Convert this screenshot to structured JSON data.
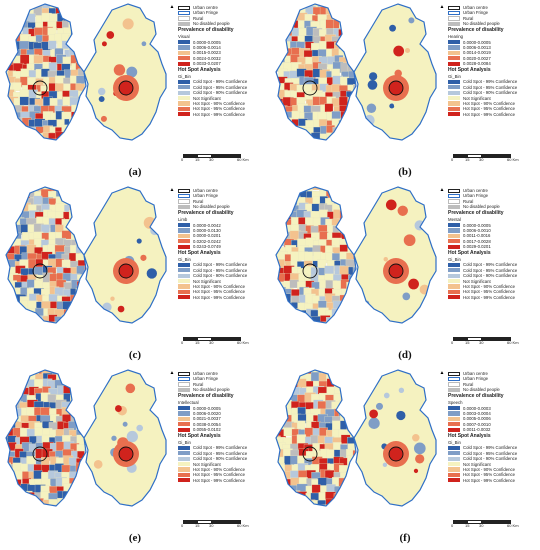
{
  "legend_common": {
    "urban_centre": "Urban centre",
    "urban_fringe": "Urban Fringe",
    "rural": "Rural",
    "no_disabled": "No disabled people",
    "prevalence_title": "Prevalence of disability",
    "hotspot_title": "Hot Spot Analysis",
    "gi_bin": "Gi_Bin",
    "gi_classes": [
      "Cold Spot - 99% Confidence",
      "Cold Spot - 95% Confidence",
      "Cold Spot - 90% Confidence",
      "Not Significant",
      "Hot Spot - 90% Confidence",
      "Hot Spot - 95% Confidence",
      "Hot Spot - 99% Confidence"
    ],
    "scale_labels": [
      "0",
      "15",
      "30",
      "60 Km"
    ]
  },
  "colors": {
    "cold99": "#2f5fa8",
    "cold95": "#7f9dc6",
    "cold90": "#b6c8dc",
    "ns": "#f5f2c0",
    "hot90": "#f3c28e",
    "hot95": "#e86f4f",
    "hot99": "#d0231d",
    "fringe": "#2f6fc6",
    "nodis": "#bdbdbd"
  },
  "panels": [
    {
      "caption": "(a)",
      "type": "Visual",
      "classes": [
        "0.0000-0.0005",
        "0.0006-0.0014",
        "0.0015-0.0023",
        "0.0024-0.0032",
        "0.0033-0.0207"
      ]
    },
    {
      "caption": "(b)",
      "type": "Hearing",
      "classes": [
        "0.0000-0.0005",
        "0.0006-0.0013",
        "0.0014-0.0019",
        "0.0020-0.0027",
        "0.0028-0.0084"
      ]
    },
    {
      "caption": "(c)",
      "type": "Limb",
      "classes": [
        "0.0000-0.0042",
        "0.0000-0.0130",
        "0.0000-0.0201",
        "0.0202-0.0242",
        "0.0243-0.0749"
      ]
    },
    {
      "caption": "(d)",
      "type": "Mental",
      "classes": [
        "0.0000-0.0005",
        "0.0006-0.0010",
        "0.0011-0.0016",
        "0.0017-0.0028",
        "0.0029-0.0201"
      ]
    },
    {
      "caption": "(e)",
      "type": "Intellectual",
      "classes": [
        "0.0000-0.0005",
        "0.0006-0.0020",
        "0.0021-0.0037",
        "0.0038-0.0054",
        "0.0055-0.0102"
      ]
    },
    {
      "caption": "(f)",
      "type": "Speech",
      "classes": [
        "0.0000-0.0003",
        "0.0003-0.0004",
        "0.0005-0.0006",
        "0.0007-0.0010",
        "0.0011-0.0032"
      ]
    }
  ]
}
